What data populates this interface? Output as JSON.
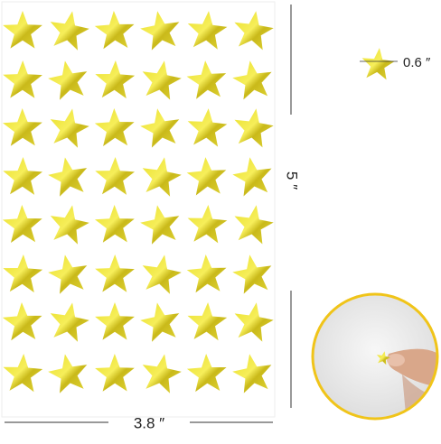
{
  "annotations": {
    "star_size": "0.6 ″",
    "height": "5 ″",
    "width": "3.8 ″"
  }
}
